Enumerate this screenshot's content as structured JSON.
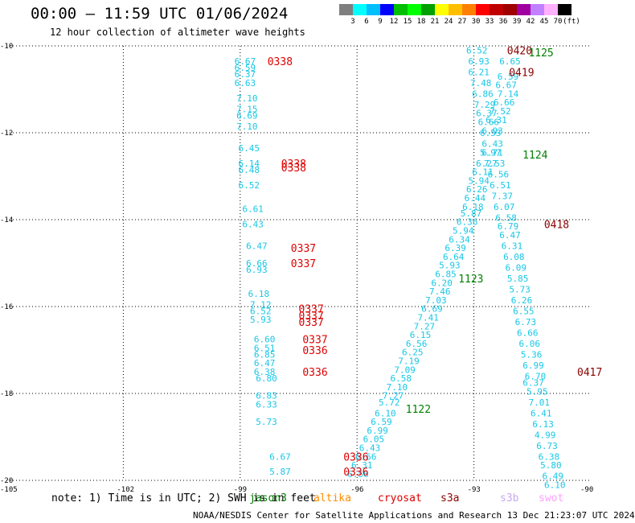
{
  "title": "00:00 – 11:59 UTC 01/06/2024",
  "subtitle": "12 hour collection of altimeter wave heights",
  "colorbar": {
    "colors": [
      "#7f7f7f",
      "#00ffff",
      "#00bfff",
      "#0000ff",
      "#00bf00",
      "#00ff00",
      "#00a000",
      "#ffff00",
      "#ffbf00",
      "#ff8000",
      "#ff0000",
      "#c00000",
      "#a00000",
      "#a000a0",
      "#c080ff",
      "#ffb0ff",
      "#000000"
    ],
    "labels": [
      "3",
      "6",
      "9",
      "12",
      "15",
      "18",
      "21",
      "24",
      "27",
      "30",
      "33",
      "36",
      "39",
      "42",
      "45",
      "70",
      "(ft)"
    ]
  },
  "map": {
    "x_ticks": [
      "-105",
      "-102",
      "-99",
      "-96",
      "-93",
      "-90"
    ],
    "y_ticks": [
      "-10",
      "-12",
      "-14",
      "-16",
      "-18",
      "-20"
    ],
    "x_range": [
      -105,
      -90
    ],
    "y_range": [
      -20,
      -10
    ]
  },
  "wave_heights": [
    {
      "v": "6.67",
      "lon": -98.9,
      "lat": -10.35
    },
    {
      "v": "6.59",
      "lon": -98.9,
      "lat": -10.5
    },
    {
      "v": "6.37",
      "lon": -98.9,
      "lat": -10.65
    },
    {
      "v": "6.63",
      "lon": -98.9,
      "lat": -10.85
    },
    {
      "v": "7.10",
      "lon": -98.85,
      "lat": -11.2
    },
    {
      "v": "7.15",
      "lon": -98.85,
      "lat": -11.45
    },
    {
      "v": "6.69",
      "lon": -98.85,
      "lat": -11.6
    },
    {
      "v": "7.10",
      "lon": -98.85,
      "lat": -11.85
    },
    {
      "v": "6.45",
      "lon": -98.8,
      "lat": -12.35
    },
    {
      "v": "6.14",
      "lon": -98.8,
      "lat": -12.7
    },
    {
      "v": "6.48",
      "lon": -98.8,
      "lat": -12.85
    },
    {
      "v": "6.52",
      "lon": -98.8,
      "lat": -13.2
    },
    {
      "v": "6.61",
      "lon": -98.7,
      "lat": -13.75
    },
    {
      "v": "6.43",
      "lon": -98.7,
      "lat": -14.1
    },
    {
      "v": "6.47",
      "lon": -98.6,
      "lat": -14.6
    },
    {
      "v": "6.66",
      "lon": -98.6,
      "lat": -15.0
    },
    {
      "v": "6.93",
      "lon": -98.6,
      "lat": -15.15
    },
    {
      "v": "6.18",
      "lon": -98.55,
      "lat": -15.7
    },
    {
      "v": "7.12",
      "lon": -98.5,
      "lat": -15.95
    },
    {
      "v": "6.52",
      "lon": -98.5,
      "lat": -16.1
    },
    {
      "v": "5.93",
      "lon": -98.5,
      "lat": -16.3
    },
    {
      "v": "6.60",
      "lon": -98.4,
      "lat": -16.75
    },
    {
      "v": "6.51",
      "lon": -98.4,
      "lat": -16.95
    },
    {
      "v": "6.85",
      "lon": -98.4,
      "lat": -17.1
    },
    {
      "v": "6.47",
      "lon": -98.4,
      "lat": -17.3
    },
    {
      "v": "6.38",
      "lon": -98.4,
      "lat": -17.5
    },
    {
      "v": "6.80",
      "lon": -98.35,
      "lat": -17.65
    },
    {
      "v": "6.83",
      "lon": -98.35,
      "lat": -18.05
    },
    {
      "v": "6.33",
      "lon": -98.35,
      "lat": -18.25
    },
    {
      "v": "5.73",
      "lon": -98.35,
      "lat": -18.65
    },
    {
      "v": "6.67",
      "lon": -98.0,
      "lat": -19.45
    },
    {
      "v": "5.87",
      "lon": -98.0,
      "lat": -19.8
    },
    {
      "v": "6.52",
      "lon": -92.95,
      "lat": -10.1
    },
    {
      "v": "6.93",
      "lon": -92.9,
      "lat": -10.35
    },
    {
      "v": "6.21",
      "lon": -92.9,
      "lat": -10.6
    },
    {
      "v": "7.48",
      "lon": -92.85,
      "lat": -10.85
    },
    {
      "v": "6.86",
      "lon": -92.8,
      "lat": -11.1
    },
    {
      "v": "7.29",
      "lon": -92.75,
      "lat": -11.35
    },
    {
      "v": "6.37",
      "lon": -92.7,
      "lat": -11.55
    },
    {
      "v": "6.66",
      "lon": -92.65,
      "lat": -11.75
    },
    {
      "v": "6.53",
      "lon": -92.6,
      "lat": -12.0
    },
    {
      "v": "6.43",
      "lon": -92.55,
      "lat": -12.25
    },
    {
      "v": "5.97",
      "lon": -92.6,
      "lat": -12.45
    },
    {
      "v": "6.27",
      "lon": -92.7,
      "lat": -12.7
    },
    {
      "v": "6.11",
      "lon": -92.8,
      "lat": -12.9
    },
    {
      "v": "5.94",
      "lon": -92.9,
      "lat": -13.1
    },
    {
      "v": "6.26",
      "lon": -92.95,
      "lat": -13.3
    },
    {
      "v": "6.44",
      "lon": -93.0,
      "lat": -13.5
    },
    {
      "v": "6.18",
      "lon": -93.05,
      "lat": -13.7
    },
    {
      "v": "5.87",
      "lon": -93.1,
      "lat": -13.85
    },
    {
      "v": "6.36",
      "lon": -93.2,
      "lat": -14.05
    },
    {
      "v": "5.94",
      "lon": -93.3,
      "lat": -14.25
    },
    {
      "v": "6.34",
      "lon": -93.4,
      "lat": -14.45
    },
    {
      "v": "6.39",
      "lon": -93.5,
      "lat": -14.65
    },
    {
      "v": "6.64",
      "lon": -93.55,
      "lat": -14.85
    },
    {
      "v": "5.93",
      "lon": -93.65,
      "lat": -15.05
    },
    {
      "v": "6.85",
      "lon": -93.75,
      "lat": -15.25
    },
    {
      "v": "6.20",
      "lon": -93.85,
      "lat": -15.45
    },
    {
      "v": "7.46",
      "lon": -93.9,
      "lat": -15.65
    },
    {
      "v": "7.03",
      "lon": -94.0,
      "lat": -15.85
    },
    {
      "v": "6.69",
      "lon": -94.1,
      "lat": -16.05
    },
    {
      "v": "7.41",
      "lon": -94.2,
      "lat": -16.25
    },
    {
      "v": "7.27",
      "lon": -94.3,
      "lat": -16.45
    },
    {
      "v": "6.15",
      "lon": -94.4,
      "lat": -16.65
    },
    {
      "v": "6.56",
      "lon": -94.5,
      "lat": -16.85
    },
    {
      "v": "6.25",
      "lon": -94.6,
      "lat": -17.05
    },
    {
      "v": "7.19",
      "lon": -94.7,
      "lat": -17.25
    },
    {
      "v": "7.09",
      "lon": -94.8,
      "lat": -17.45
    },
    {
      "v": "6.58",
      "lon": -94.9,
      "lat": -17.65
    },
    {
      "v": "7.10",
      "lon": -95.0,
      "lat": -17.85
    },
    {
      "v": "7.27",
      "lon": -95.1,
      "lat": -18.05
    },
    {
      "v": "5.72",
      "lon": -95.2,
      "lat": -18.2
    },
    {
      "v": "6.10",
      "lon": -95.3,
      "lat": -18.45
    },
    {
      "v": "6.59",
      "lon": -95.4,
      "lat": -18.65
    },
    {
      "v": "6.99",
      "lon": -95.5,
      "lat": -18.85
    },
    {
      "v": "6.05",
      "lon": -95.6,
      "lat": -19.05
    },
    {
      "v": "6.43",
      "lon": -95.7,
      "lat": -19.25
    },
    {
      "v": "6.66",
      "lon": -95.8,
      "lat": -19.45
    },
    {
      "v": "6.31",
      "lon": -95.9,
      "lat": -19.65
    },
    {
      "v": "6.56",
      "lon": -96.0,
      "lat": -19.85
    },
    {
      "v": "6.65",
      "lon": -92.1,
      "lat": -10.35
    },
    {
      "v": "6.59",
      "lon": -92.15,
      "lat": -10.7
    },
    {
      "v": "6.67",
      "lon": -92.2,
      "lat": -10.9
    },
    {
      "v": "7.14",
      "lon": -92.15,
      "lat": -11.1
    },
    {
      "v": "6.66",
      "lon": -92.25,
      "lat": -11.3
    },
    {
      "v": "7.52",
      "lon": -92.35,
      "lat": -11.5
    },
    {
      "v": "6.31",
      "lon": -92.45,
      "lat": -11.7
    },
    {
      "v": "6.93",
      "lon": -92.55,
      "lat": -11.95
    },
    {
      "v": "6.71",
      "lon": -92.55,
      "lat": -12.45
    },
    {
      "v": "7.53",
      "lon": -92.5,
      "lat": -12.7
    },
    {
      "v": "6.56",
      "lon": -92.4,
      "lat": -12.95
    },
    {
      "v": "6.51",
      "lon": -92.35,
      "lat": -13.2
    },
    {
      "v": "7.37",
      "lon": -92.3,
      "lat": -13.45
    },
    {
      "v": "6.07",
      "lon": -92.25,
      "lat": -13.7
    },
    {
      "v": "6.58",
      "lon": -92.2,
      "lat": -13.95
    },
    {
      "v": "6.79",
      "lon": -92.15,
      "lat": -14.15
    },
    {
      "v": "6.47",
      "lon": -92.1,
      "lat": -14.35
    },
    {
      "v": "6.31",
      "lon": -92.05,
      "lat": -14.6
    },
    {
      "v": "6.08",
      "lon": -92.0,
      "lat": -14.85
    },
    {
      "v": "6.09",
      "lon": -91.95,
      "lat": -15.1
    },
    {
      "v": "5.85",
      "lon": -91.9,
      "lat": -15.35
    },
    {
      "v": "5.73",
      "lon": -91.85,
      "lat": -15.6
    },
    {
      "v": "6.26",
      "lon": -91.8,
      "lat": -15.85
    },
    {
      "v": "6.55",
      "lon": -91.75,
      "lat": -16.1
    },
    {
      "v": "6.73",
      "lon": -91.7,
      "lat": -16.35
    },
    {
      "v": "6.66",
      "lon": -91.65,
      "lat": -16.6
    },
    {
      "v": "6.06",
      "lon": -91.6,
      "lat": -16.85
    },
    {
      "v": "5.36",
      "lon": -91.55,
      "lat": -17.1
    },
    {
      "v": "6.99",
      "lon": -91.5,
      "lat": -17.35
    },
    {
      "v": "6.70",
      "lon": -91.45,
      "lat": -17.6
    },
    {
      "v": "6.37",
      "lon": -91.5,
      "lat": -17.75
    },
    {
      "v": "5.95",
      "lon": -91.4,
      "lat": -17.95
    },
    {
      "v": "7.01",
      "lon": -91.35,
      "lat": -18.2
    },
    {
      "v": "6.41",
      "lon": -91.3,
      "lat": -18.45
    },
    {
      "v": "6.13",
      "lon": -91.25,
      "lat": -18.7
    },
    {
      "v": "4.99",
      "lon": -91.2,
      "lat": -18.95
    },
    {
      "v": "6.73",
      "lon": -91.15,
      "lat": -19.2
    },
    {
      "v": "6.38",
      "lon": -91.1,
      "lat": -19.45
    },
    {
      "v": "5.80",
      "lon": -91.05,
      "lat": -19.65
    },
    {
      "v": "6.49",
      "lon": -91.0,
      "lat": -19.9
    },
    {
      "v": "6.10",
      "lon": -90.95,
      "lat": -20.1
    }
  ],
  "pass_labels": [
    {
      "t": "0338",
      "lon": -98.3,
      "lat": -10.35,
      "c": "#dd0000"
    },
    {
      "t": "0338",
      "lon": -97.95,
      "lat": -12.7,
      "c": "#dd0000"
    },
    {
      "t": "0338",
      "lon": -97.95,
      "lat": -12.8,
      "c": "#dd0000"
    },
    {
      "t": "0337",
      "lon": -97.7,
      "lat": -14.65,
      "c": "#dd0000"
    },
    {
      "t": "0337",
      "lon": -97.7,
      "lat": -15.0,
      "c": "#dd0000"
    },
    {
      "t": "0337",
      "lon": -97.5,
      "lat": -16.05,
      "c": "#dd0000"
    },
    {
      "t": "0337",
      "lon": -97.5,
      "lat": -16.2,
      "c": "#dd0000"
    },
    {
      "t": "0337",
      "lon": -97.5,
      "lat": -16.35,
      "c": "#dd0000"
    },
    {
      "t": "0337",
      "lon": -97.4,
      "lat": -16.75,
      "c": "#dd0000"
    },
    {
      "t": "0336",
      "lon": -97.4,
      "lat": -17.0,
      "c": "#dd0000"
    },
    {
      "t": "0336",
      "lon": -97.4,
      "lat": -17.5,
      "c": "#dd0000"
    },
    {
      "t": "0336",
      "lon": -96.35,
      "lat": -19.45,
      "c": "#dd0000"
    },
    {
      "t": "0336",
      "lon": -96.35,
      "lat": -19.8,
      "c": "#dd0000"
    },
    {
      "t": "0420",
      "lon": -92.15,
      "lat": -10.1,
      "c": "#8b0000"
    },
    {
      "t": "0419",
      "lon": -92.1,
      "lat": -10.6,
      "c": "#8b0000"
    },
    {
      "t": "0418",
      "lon": -91.2,
      "lat": -14.1,
      "c": "#8b0000"
    },
    {
      "t": "0417",
      "lon": -90.35,
      "lat": -17.5,
      "c": "#8b0000"
    },
    {
      "t": "1125",
      "lon": -91.6,
      "lat": -10.15,
      "c": "#008000"
    },
    {
      "t": "1124",
      "lon": -91.75,
      "lat": -12.5,
      "c": "#008000"
    },
    {
      "t": "1123",
      "lon": -93.4,
      "lat": -15.35,
      "c": "#008000"
    },
    {
      "t": "1122",
      "lon": -94.75,
      "lat": -18.35,
      "c": "#008000"
    }
  ],
  "note": "note: 1) Time is in UTC; 2) SWH is in feet",
  "satellites": [
    {
      "name": "jason3",
      "color": "#008000"
    },
    {
      "name": "altika",
      "color": "#ff8c00"
    },
    {
      "name": "cryosat",
      "color": "#dd0000"
    },
    {
      "name": "s3a",
      "color": "#8b0000"
    },
    {
      "name": "s3b",
      "color": "#c8a8f0"
    },
    {
      "name": "swot",
      "color": "#ffa0ff"
    }
  ],
  "credit": "NOAA/NESDIS Center for Satellite Applications and Research   13 Dec 21:23:07 UTC 2024"
}
